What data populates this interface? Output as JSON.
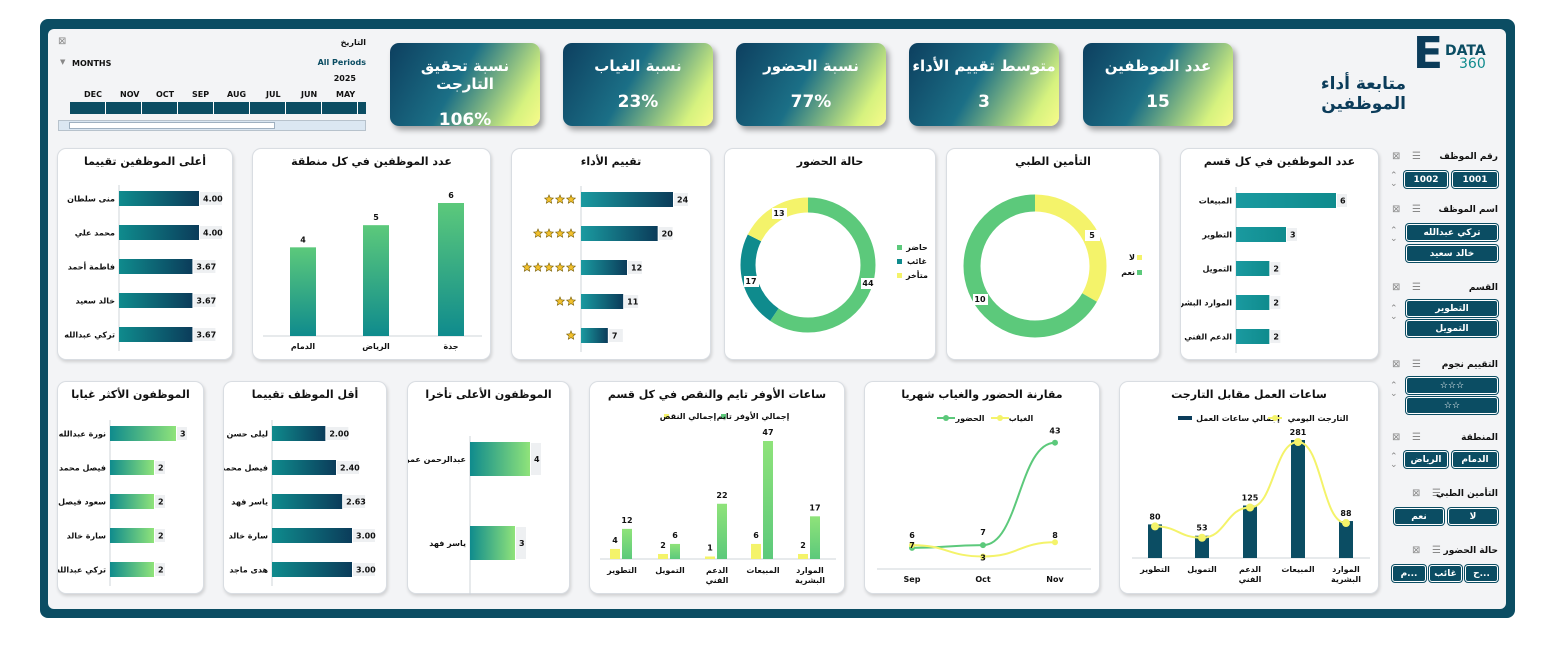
{
  "header": {
    "title": "متابعة أداء الموظفين",
    "logo_letter": "E",
    "logo_top": "DATA",
    "logo_bottom": "360"
  },
  "kpis": [
    {
      "title": "عدد الموظفين",
      "value": "15"
    },
    {
      "title": "متوسط تقييم الأداء",
      "value": "3"
    },
    {
      "title": "نسبة الحضور",
      "value": "77%"
    },
    {
      "title": "نسبة الغياب",
      "value": "23%"
    },
    {
      "title": "نسبة تحقيق التارجت",
      "value": "106%"
    }
  ],
  "timeline": {
    "label": "التاريخ",
    "periods": "All Periods",
    "year": "2025",
    "unit": "MONTHS",
    "months": [
      "DEC",
      "NOV",
      "OCT",
      "SEP",
      "AUG",
      "JUL",
      "JUN",
      "MAY"
    ]
  },
  "slicers": [
    {
      "title": "رقم الموظف",
      "items": [
        "1001",
        "1002"
      ]
    },
    {
      "title": "اسم الموظف",
      "items": [
        "تركي عبدالله",
        "خالد سعيد"
      ]
    },
    {
      "title": "القسم",
      "items": [
        "التطوير",
        "التمويل"
      ]
    },
    {
      "title": "التقييم نجوم",
      "items": [
        "☆☆☆",
        "☆☆"
      ]
    },
    {
      "title": "المنطقة",
      "items": [
        "الدمام",
        "الرياض"
      ]
    },
    {
      "title": "التأمين الطبي",
      "items": [
        "لا",
        "نعم"
      ]
    },
    {
      "title": "حالة الحضور",
      "items": [
        "ح...",
        "غائب",
        "م..."
      ]
    }
  ],
  "panels": {
    "dept_count": {
      "title": "عدد الموظفين في كل قسم",
      "labels": [
        "المبيعات",
        "التطوير",
        "التمويل",
        "الموارد البشرية",
        "الدعم الفني"
      ],
      "values": [
        6,
        3,
        2,
        2,
        2
      ]
    },
    "insurance": {
      "title": "التأمين الطبي",
      "legend": [
        "لا",
        "نعم"
      ],
      "values": [
        5,
        10
      ]
    },
    "attendance": {
      "title": "حالة الحضور",
      "legend": [
        "حاضر",
        "غائب",
        "متأخر"
      ],
      "values": [
        44,
        17,
        13
      ]
    },
    "rating": {
      "title": "تقييم الأداء",
      "stars": [
        3,
        4,
        5,
        2,
        1
      ],
      "values": [
        24,
        20,
        12,
        11,
        7
      ]
    },
    "region": {
      "title": "عدد الموظفين في كل منطقة",
      "labels": [
        "الدمام",
        "الرياض",
        "جدة"
      ],
      "values": [
        4,
        5,
        6
      ]
    },
    "top_rated": {
      "title": "أعلى الموظفين تقييما",
      "labels": [
        "منى سلطان",
        "محمد علي",
        "فاطمة أحمد",
        "خالد سعيد",
        "تركي عبدالله"
      ],
      "values": [
        "4.00",
        "4.00",
        "3.67",
        "3.67",
        "3.67"
      ]
    },
    "target": {
      "title": "ساعات العمل مقابل التارجت",
      "legend": [
        "إجمالي ساعات العمل",
        "التارجت اليومي"
      ],
      "labels": [
        "التطوير",
        "التمويل",
        "الدعم الفني",
        "المبيعات",
        "الموارد البشرية"
      ],
      "values": [
        80,
        53,
        125,
        281,
        88
      ]
    },
    "monthly": {
      "title": "مقارنة الحضور والغياب شهريا",
      "legend": [
        "الحضور",
        "الغياب"
      ],
      "months": [
        "Sep",
        "Oct",
        "Nov"
      ],
      "present": [
        6,
        7,
        43
      ],
      "absent": [
        7,
        3,
        8
      ]
    },
    "overtime": {
      "title": "ساعات الأوفر تايم والنقص في كل قسم",
      "legend": [
        "إجمالي الأوفر تايم",
        "إجمالي النقص"
      ],
      "labels": [
        "التطوير",
        "التمويل",
        "الدعم الفني",
        "المبيعات",
        "الموارد البشرية"
      ],
      "overtime": [
        12,
        6,
        22,
        47,
        17
      ],
      "shortage": [
        4,
        2,
        1,
        6,
        2
      ]
    },
    "late": {
      "title": "الموظفون الأعلى تأخرا",
      "labels": [
        "عبدالرحمن عمر",
        "ياسر فهد"
      ],
      "values": [
        4,
        3
      ]
    },
    "low_rated": {
      "title": "أقل الموظف تقييما",
      "labels": [
        "ليلى حسن",
        "فيصل محمد",
        "ياسر فهد",
        "سارة خالد",
        "هدى ماجد"
      ],
      "values": [
        "2.00",
        "2.40",
        "2.63",
        "3.00",
        "3.00"
      ]
    },
    "absent": {
      "title": "الموظفون الأكثر غيابا",
      "labels": [
        "نورة عبدالله",
        "فيصل محمد",
        "سعود فيصل",
        "سارة خالد",
        "تركي عبدالله"
      ],
      "values": [
        3,
        2,
        2,
        2,
        2
      ]
    }
  },
  "colors": {
    "navy": "#0b4d63",
    "teal": "#0f8b8d",
    "green": "#5cc97b",
    "yellow": "#f4f36a"
  }
}
